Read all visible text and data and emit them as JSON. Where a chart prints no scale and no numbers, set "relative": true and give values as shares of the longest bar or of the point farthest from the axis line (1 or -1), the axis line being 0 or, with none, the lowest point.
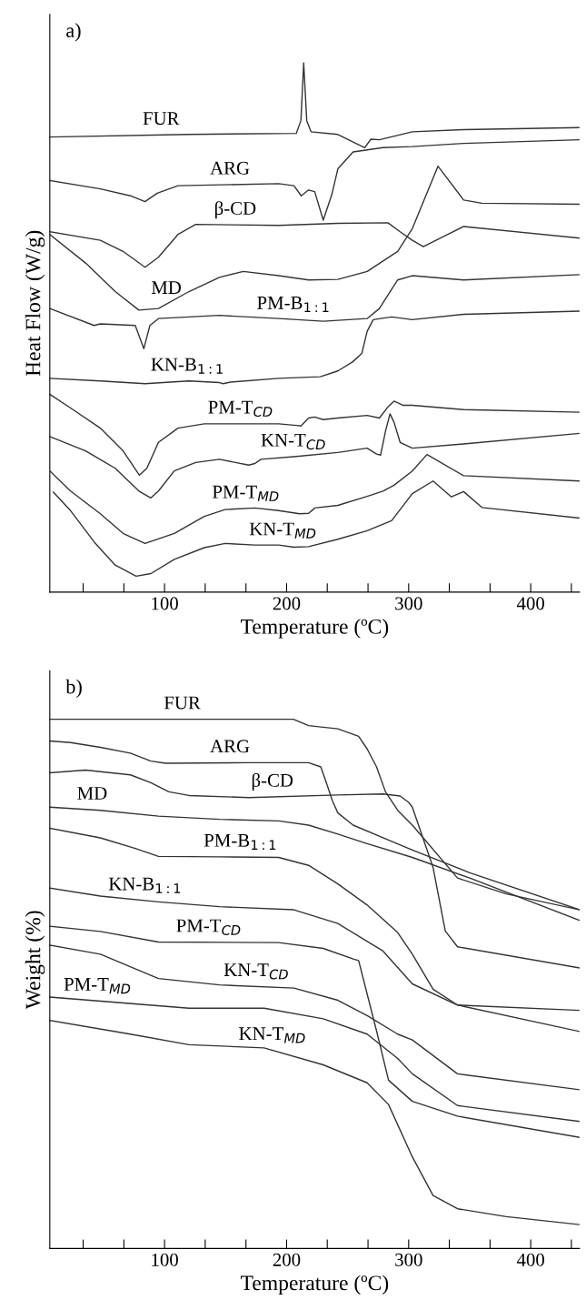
{
  "chart_data": [
    {
      "type": "line",
      "relative": true,
      "xlabel": "Temperature (ºC)",
      "ylabel": "Heat Flow (W/g)",
      "xlim": [
        6,
        440
      ],
      "xticks": [
        {
          "value": 33.3,
          "label": null
        },
        {
          "value": 66.7,
          "label": null
        },
        100,
        {
          "value": 133.3,
          "label": null
        },
        {
          "value": 166.7,
          "label": null
        },
        200,
        {
          "value": 233.3,
          "label": null
        },
        {
          "value": 266.7,
          "label": null
        },
        300,
        {
          "value": 333.3,
          "label": null
        },
        {
          "value": 366.7,
          "label": null
        },
        400,
        {
          "value": 433.3,
          "label": null
        }
      ],
      "tick_labels": "x",
      "grid": false,
      "legend": false,
      "marker": "none",
      "line_style": "solid",
      "series": [
        {
          "name": "FUR",
          "color": "#333333",
          "x": [
            6,
            120,
            208,
            211.7,
            214,
            216.5,
            220,
            242,
            264,
            269,
            276,
            303,
            345,
            440
          ],
          "values": [
            0.86,
            0.865,
            0.867,
            0.891,
            1.0,
            0.891,
            0.87,
            0.865,
            0.84,
            0.856,
            0.855,
            0.87,
            0.874,
            0.878
          ]
        },
        {
          "name": "ARG",
          "color": "#333333",
          "x": [
            6,
            47.4,
            72,
            84,
            94,
            111,
            193.5,
            206,
            212,
            218,
            223,
            230,
            237,
            242,
            254.5,
            279,
            303,
            345,
            440
          ],
          "values": [
            0.778,
            0.762,
            0.749,
            0.738,
            0.754,
            0.768,
            0.772,
            0.768,
            0.749,
            0.76,
            0.757,
            0.703,
            0.751,
            0.8,
            0.832,
            0.84,
            0.842,
            0.848,
            0.855
          ]
        },
        {
          "name": "β-CD",
          "color": "#333333",
          "x": [
            6,
            47.4,
            66,
            84,
            95,
            111,
            125.5,
            193.5,
            242,
            283,
            293,
            303,
            312,
            345,
            440
          ],
          "values": [
            0.681,
            0.665,
            0.644,
            0.614,
            0.633,
            0.676,
            0.695,
            0.693,
            0.697,
            0.698,
            0.681,
            0.665,
            0.653,
            0.691,
            0.669
          ]
        },
        {
          "name": "MD",
          "color": "#333333",
          "x": [
            6,
            35.3,
            59.6,
            79,
            95,
            120,
            145,
            164.5,
            193.5,
            218,
            242,
            266,
            291,
            303,
            324,
            345,
            360,
            440
          ],
          "values": [
            0.676,
            0.622,
            0.568,
            0.533,
            0.536,
            0.568,
            0.595,
            0.606,
            0.598,
            0.59,
            0.591,
            0.606,
            0.644,
            0.687,
            0.805,
            0.741,
            0.735,
            0.733
          ]
        },
        {
          "name": "PM-B$_{1:1}$",
          "color": "#333333",
          "x": [
            6,
            42.3,
            47.4,
            76,
            83,
            88,
            95,
            145,
            193.5,
            230,
            266,
            276,
            291,
            303,
            345,
            440
          ],
          "values": [
            0.536,
            0.504,
            0.507,
            0.504,
            0.46,
            0.504,
            0.517,
            0.523,
            0.517,
            0.512,
            0.517,
            0.536,
            0.59,
            0.598,
            0.59,
            0.6
          ]
        },
        {
          "name": "KN-B$_{1:1}$",
          "color": "#333333",
          "x": [
            6,
            47.4,
            84,
            120,
            145,
            148,
            154,
            193.5,
            227.6,
            242,
            254,
            261.6,
            266,
            271,
            286,
            303,
            345,
            440
          ],
          "values": [
            0.404,
            0.399,
            0.394,
            0.399,
            0.396,
            0.394,
            0.397,
            0.404,
            0.407,
            0.418,
            0.435,
            0.451,
            0.493,
            0.515,
            0.52,
            0.515,
            0.525,
            0.531
          ]
        },
        {
          "name": "PM-T$_{CD}$",
          "color": "#333333",
          "x": [
            6,
            23,
            47.4,
            66,
            79.4,
            85.5,
            95,
            111,
            132.6,
            193.5,
            208,
            211.7,
            218,
            223,
            230,
            242,
            266,
            276,
            283,
            288,
            295.6,
            303,
            345,
            440
          ],
          "values": [
            0.374,
            0.348,
            0.31,
            0.267,
            0.221,
            0.234,
            0.283,
            0.31,
            0.318,
            0.318,
            0.315,
            0.314,
            0.329,
            0.331,
            0.326,
            0.329,
            0.334,
            0.329,
            0.35,
            0.361,
            0.353,
            0.353,
            0.345,
            0.34
          ]
        },
        {
          "name": "KN-T$_{CD}$",
          "color": "#333333",
          "x": [
            6,
            35.3,
            59.6,
            79,
            88.8,
            95,
            108,
            125.5,
            145,
            169,
            174,
            179,
            206,
            242,
            266,
            273.7,
            277,
            281,
            284.7,
            288,
            293,
            303,
            345,
            440
          ],
          "values": [
            0.294,
            0.267,
            0.234,
            0.191,
            0.178,
            0.191,
            0.229,
            0.245,
            0.251,
            0.24,
            0.243,
            0.251,
            0.256,
            0.264,
            0.272,
            0.261,
            0.259,
            0.304,
            0.337,
            0.321,
            0.283,
            0.272,
            0.28,
            0.3
          ]
        },
        {
          "name": "PM-T$_{MD}$",
          "color": "#333333",
          "x": [
            6,
            23,
            47.4,
            66,
            84,
            108,
            132.6,
            149.6,
            174,
            193.5,
            210.6,
            218,
            221.7,
            223,
            242,
            266,
            279,
            288,
            303,
            315,
            345,
            440
          ],
          "values": [
            0.229,
            0.191,
            0.148,
            0.111,
            0.092,
            0.111,
            0.143,
            0.156,
            0.159,
            0.154,
            0.148,
            0.149,
            0.156,
            0.159,
            0.164,
            0.181,
            0.191,
            0.202,
            0.229,
            0.26,
            0.22,
            0.21
          ]
        },
        {
          "name": "KN-T$_{MD}$",
          "color": "#333333",
          "x": [
            8.9,
            23,
            42.6,
            59.6,
            76.7,
            88.8,
            108,
            132.6,
            149.6,
            174,
            193.5,
            206,
            218,
            242,
            266,
            286,
            303,
            320,
            335,
            345,
            360,
            440
          ],
          "values": [
            0.189,
            0.154,
            0.094,
            0.051,
            0.03,
            0.035,
            0.062,
            0.084,
            0.092,
            0.089,
            0.089,
            0.085,
            0.086,
            0.1,
            0.116,
            0.135,
            0.186,
            0.21,
            0.18,
            0.19,
            0.16,
            0.14
          ]
        }
      ],
      "annotations": [
        "a)"
      ]
    },
    {
      "type": "line",
      "relative": true,
      "xlabel": "Temperature (ºC)",
      "ylabel": "Weight (%)",
      "xlim": [
        6,
        440
      ],
      "xticks": [
        {
          "value": 33.3,
          "label": null
        },
        {
          "value": 66.7,
          "label": null
        },
        100,
        {
          "value": 133.3,
          "label": null
        },
        {
          "value": 166.7,
          "label": null
        },
        200,
        {
          "value": 233.3,
          "label": null
        },
        {
          "value": 266.7,
          "label": null
        },
        300,
        {
          "value": 333.3,
          "label": null
        },
        {
          "value": 366.7,
          "label": null
        },
        400,
        {
          "value": 433.3,
          "label": null
        }
      ],
      "tick_labels": "x",
      "grid": false,
      "legend": false,
      "marker": "none",
      "line_style": "solid",
      "series": [
        {
          "name": "FUR",
          "color": "#333333",
          "x": [
            6,
            205.6,
            218,
            242,
            259,
            266,
            273.7,
            281,
            291,
            303,
            340,
            380,
            440
          ],
          "values": [
            1.0,
            1.0,
            0.988,
            0.982,
            0.968,
            0.944,
            0.91,
            0.863,
            0.828,
            0.8,
            0.7,
            0.67,
            0.64
          ]
        },
        {
          "name": "ARG",
          "color": "#333333",
          "x": [
            6,
            23,
            47.4,
            72,
            88.8,
            101,
            169,
            218,
            228,
            232.6,
            237.5,
            242,
            254.5,
            279,
            303,
            350,
            440
          ],
          "values": [
            0.959,
            0.956,
            0.947,
            0.936,
            0.921,
            0.917,
            0.918,
            0.918,
            0.91,
            0.88,
            0.846,
            0.823,
            0.8,
            0.776,
            0.753,
            0.71,
            0.64
          ]
        },
        {
          "name": "β-CD",
          "color": "#333333",
          "x": [
            6,
            35.3,
            72,
            88.8,
            103.5,
            120,
            169,
            242,
            279,
            293,
            300,
            303,
            320,
            330,
            340,
            440
          ],
          "values": [
            0.899,
            0.904,
            0.895,
            0.88,
            0.863,
            0.856,
            0.852,
            0.857,
            0.859,
            0.855,
            0.843,
            0.834,
            0.72,
            0.6,
            0.57,
            0.53
          ]
        },
        {
          "name": "MD",
          "color": "#333333",
          "x": [
            6,
            47.4,
            95,
            145,
            193.5,
            218,
            242,
            266,
            303,
            350,
            440
          ],
          "values": [
            0.834,
            0.828,
            0.817,
            0.811,
            0.808,
            0.8,
            0.783,
            0.765,
            0.739,
            0.7,
            0.62
          ]
        },
        {
          "name": "PM-B$_{1:1}$",
          "color": "#333333",
          "x": [
            6,
            47.4,
            76,
            95,
            145,
            193.5,
            218,
            242,
            266,
            291,
            303,
            320,
            340,
            440
          ],
          "values": [
            0.794,
            0.776,
            0.756,
            0.741,
            0.74,
            0.739,
            0.724,
            0.689,
            0.649,
            0.597,
            0.556,
            0.49,
            0.46,
            0.45
          ]
        },
        {
          "name": "KN-B$_{1:1}$",
          "color": "#333333",
          "x": [
            6,
            47.4,
            95,
            145,
            206,
            242,
            279,
            303,
            340,
            440
          ],
          "values": [
            0.681,
            0.666,
            0.655,
            0.646,
            0.64,
            0.614,
            0.562,
            0.5,
            0.46,
            0.41
          ]
        },
        {
          "name": "PM-T$_{CD}$",
          "color": "#333333",
          "x": [
            6,
            47.4,
            95,
            193.5,
            230,
            254.5,
            259,
            273.7,
            283.5,
            303,
            340,
            440
          ],
          "values": [
            0.609,
            0.599,
            0.579,
            0.578,
            0.567,
            0.547,
            0.544,
            0.411,
            0.318,
            0.278,
            0.25,
            0.21
          ]
        },
        {
          "name": "KN-T$_{CD}$",
          "color": "#333333",
          "x": [
            6,
            47.4,
            95,
            145,
            206,
            242,
            266,
            291,
            303,
            340,
            440
          ],
          "values": [
            0.573,
            0.556,
            0.51,
            0.498,
            0.492,
            0.469,
            0.44,
            0.405,
            0.394,
            0.33,
            0.3
          ]
        },
        {
          "name": "PM-T$_{MD}$",
          "color": "#333333",
          "x": [
            6,
            120,
            181.5,
            230,
            266,
            291,
            303,
            340,
            440
          ],
          "values": [
            0.475,
            0.454,
            0.454,
            0.434,
            0.405,
            0.359,
            0.33,
            0.27,
            0.24
          ]
        },
        {
          "name": "KN-T$_{MD}$",
          "color": "#333333",
          "x": [
            6,
            72,
            120,
            181.5,
            230,
            266,
            283.5,
            303,
            320,
            340,
            380,
            440
          ],
          "values": [
            0.431,
            0.405,
            0.385,
            0.379,
            0.347,
            0.313,
            0.272,
            0.173,
            0.1,
            0.075,
            0.06,
            0.045
          ]
        }
      ],
      "annotations": [
        "b)"
      ]
    }
  ]
}
